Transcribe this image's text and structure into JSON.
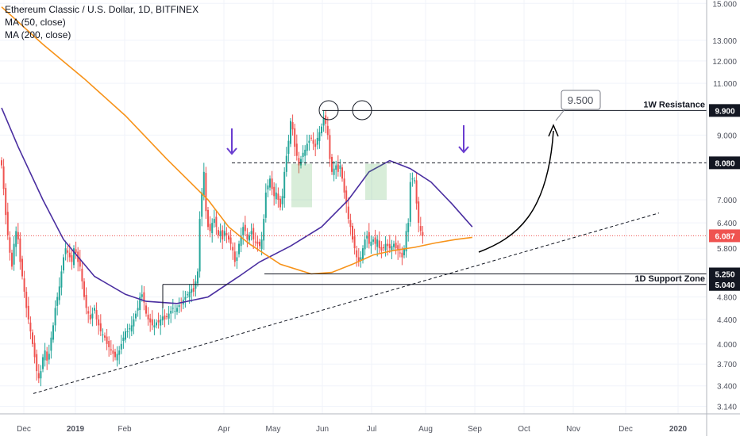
{
  "chart_data": {
    "type": "candlestick",
    "title": "Ethereum Classic / U.S. Dollar, 1D, BITFINEX",
    "indicators": [
      "MA (50, close)",
      "MA (200, close)"
    ],
    "y_scale": "log",
    "ylim": [
      3.05,
      15.2
    ],
    "y_ticks": [
      "15.000",
      "13.000",
      "12.000",
      "11.000",
      "9.000",
      "7.000",
      "6.400",
      "5.800",
      "4.800",
      "4.400",
      "4.000",
      "3.700",
      "3.400",
      "3.140"
    ],
    "x_ticks": [
      "Dec",
      "2019",
      "Feb",
      "Apr",
      "May",
      "Jun",
      "Jul",
      "Aug",
      "Sep",
      "Oct",
      "Nov",
      "Dec",
      "2020"
    ],
    "price_labels": [
      {
        "value": "9.900",
        "kind": "level",
        "color": "#131722"
      },
      {
        "value": "8.080",
        "kind": "level",
        "color": "#131722"
      },
      {
        "value": "6.087",
        "kind": "last",
        "color": "#ef5350"
      },
      {
        "value": "5.250",
        "kind": "level",
        "color": "#131722"
      },
      {
        "value": "5.040",
        "kind": "level",
        "color": "#131722"
      }
    ],
    "annotations": {
      "resistance": {
        "label": "1W Resistance",
        "value": 9.9
      },
      "support": {
        "label": "1D Support Zone",
        "values": [
          5.04,
          5.25
        ]
      },
      "dashed_level": {
        "value": 8.08
      },
      "target": {
        "label": "9.500"
      }
    },
    "series": [
      {
        "name": "MA (50, close)",
        "color": "#4a2ea0",
        "points": [
          [
            0,
            10.0
          ],
          [
            8,
            8.6
          ],
          [
            20,
            7.0
          ],
          [
            30,
            6.0
          ],
          [
            45,
            5.2
          ],
          [
            60,
            4.85
          ],
          [
            70,
            4.72
          ],
          [
            85,
            4.68
          ],
          [
            100,
            4.8
          ],
          [
            115,
            5.2
          ],
          [
            125,
            5.5
          ],
          [
            140,
            5.85
          ],
          [
            155,
            6.3
          ],
          [
            168,
            7.0
          ],
          [
            178,
            7.8
          ],
          [
            188,
            8.15
          ],
          [
            198,
            7.9
          ],
          [
            208,
            7.5
          ],
          [
            218,
            6.9
          ],
          [
            228,
            6.3
          ]
        ]
      },
      {
        "name": "MA (200, close)",
        "color": "#f7931a",
        "points": [
          [
            0,
            14.8
          ],
          [
            20,
            12.8
          ],
          [
            40,
            11.2
          ],
          [
            60,
            9.7
          ],
          [
            80,
            8.2
          ],
          [
            100,
            7.0
          ],
          [
            110,
            6.3
          ],
          [
            120,
            5.9
          ],
          [
            135,
            5.45
          ],
          [
            150,
            5.25
          ],
          [
            160,
            5.28
          ],
          [
            170,
            5.45
          ],
          [
            180,
            5.65
          ],
          [
            190,
            5.75
          ],
          [
            200,
            5.82
          ],
          [
            210,
            5.92
          ],
          [
            220,
            6.0
          ],
          [
            228,
            6.05
          ]
        ]
      }
    ],
    "daily_close": [
      8.0,
      7.3,
      6.6,
      6.1,
      5.7,
      5.4,
      5.9,
      6.2,
      6.0,
      5.5,
      5.2,
      4.9,
      4.6,
      4.4,
      4.2,
      4.0,
      3.8,
      3.6,
      3.5,
      3.6,
      3.8,
      3.9,
      3.75,
      3.85,
      4.1,
      4.3,
      4.6,
      4.8,
      5.0,
      5.3,
      5.6,
      5.8,
      5.7,
      5.6,
      5.5,
      5.8,
      5.7,
      5.5,
      5.4,
      5.1,
      4.8,
      4.6,
      4.5,
      4.4,
      4.5,
      4.6,
      4.4,
      4.3,
      4.2,
      4.15,
      4.1,
      4.0,
      3.95,
      3.9,
      3.85,
      3.8,
      3.85,
      3.9,
      4.0,
      4.1,
      4.2,
      4.2,
      4.25,
      4.3,
      4.4,
      4.5,
      4.6,
      4.8,
      4.85,
      4.7,
      4.5,
      4.4,
      4.35,
      4.3,
      4.3,
      4.35,
      4.35,
      4.4,
      4.45,
      4.4,
      4.45,
      4.5,
      4.55,
      4.6,
      4.55,
      4.6,
      4.65,
      4.7,
      4.75,
      4.8,
      4.85,
      4.9,
      4.95,
      4.9,
      5.1,
      5.3,
      6.5,
      7.2,
      7.8,
      6.7,
      6.3,
      6.2,
      6.4,
      6.5,
      6.3,
      6.1,
      6.2,
      6.0,
      6.2,
      6.1,
      6.0,
      5.9,
      5.75,
      5.5,
      5.6,
      5.9,
      6.1,
      6.3,
      6.2,
      6.0,
      6.1,
      6.2,
      6.0,
      5.95,
      5.9,
      5.85,
      6.0,
      6.5,
      7.2,
      7.4,
      7.6,
      7.3,
      7.1,
      7.2,
      7.0,
      6.8,
      7.1,
      7.8,
      8.3,
      8.8,
      9.5,
      9.2,
      8.6,
      8.3,
      8.0,
      8.2,
      8.4,
      8.5,
      8.7,
      8.8,
      8.9,
      8.7,
      8.6,
      8.9,
      9.1,
      9.3,
      9.6,
      9.4,
      9.0,
      8.2,
      7.8,
      7.9,
      8.0,
      7.8,
      8.0,
      7.6,
      7.2,
      6.9,
      6.5,
      6.3,
      6.0,
      5.8,
      5.6,
      5.5,
      5.6,
      5.8,
      6.0,
      6.1,
      5.9,
      5.95,
      6.0,
      5.9,
      6.0,
      5.8,
      5.75,
      5.8,
      5.9,
      5.85,
      5.8,
      5.85,
      5.9,
      5.8,
      5.75,
      5.7,
      5.6,
      5.8,
      6.2,
      6.4,
      7.5,
      7.6,
      7.55,
      6.9,
      6.4,
      6.2,
      6.087
    ]
  }
}
